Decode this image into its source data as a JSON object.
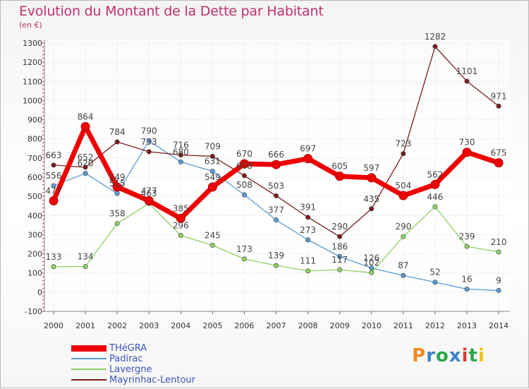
{
  "title": "Evolution du Montant de la Dette par Habitant",
  "subtitle": "(en €)",
  "logo": {
    "text": "Proxiti",
    "colors": [
      "#f28a1c",
      "#3b82c4",
      "#2aa84a",
      "#3b82c4",
      "#e23b3b",
      "#2aa84a",
      "#f2c21c"
    ]
  },
  "chart_data": {
    "type": "line",
    "title": "Evolution du Montant de la Dette par Habitant",
    "ylabel": "(en €)",
    "x": [
      "2000",
      "2001",
      "2002",
      "2003",
      "2004",
      "2005",
      "2006",
      "2007",
      "2008",
      "2009",
      "2010",
      "2011",
      "2012",
      "2013",
      "2014"
    ],
    "ylim": [
      -100,
      1300
    ],
    "yticks": [
      -100,
      0,
      100,
      200,
      300,
      400,
      500,
      600,
      700,
      800,
      900,
      1000,
      1100,
      1200,
      1300
    ],
    "grid": true,
    "legend_position": "bottom-left",
    "series": [
      {
        "name": "THéGRA",
        "color": "#ee0000",
        "emphasis": true,
        "values": [
          477,
          864,
          549,
          477,
          385,
          549,
          670,
          666,
          697,
          605,
          597,
          504,
          562,
          730,
          675
        ]
      },
      {
        "name": "Padirac",
        "color": "#5a9bd5",
        "values": [
          556,
          620,
          515,
          790,
          680,
          631,
          508,
          377,
          273,
          186,
          126,
          87,
          52,
          16,
          9
        ]
      },
      {
        "name": "Lavergne",
        "color": "#8ed163",
        "values": [
          133,
          134,
          358,
          463,
          296,
          245,
          173,
          139,
          111,
          117,
          102,
          290,
          446,
          239,
          210
        ]
      },
      {
        "name": "Mayrinhac-Lentour",
        "color": "#7a1e1e",
        "values": [
          663,
          652,
          784,
          733,
          716,
          709,
          608,
          503,
          391,
          290,
          435,
          723,
          1282,
          1101,
          971
        ]
      }
    ]
  }
}
